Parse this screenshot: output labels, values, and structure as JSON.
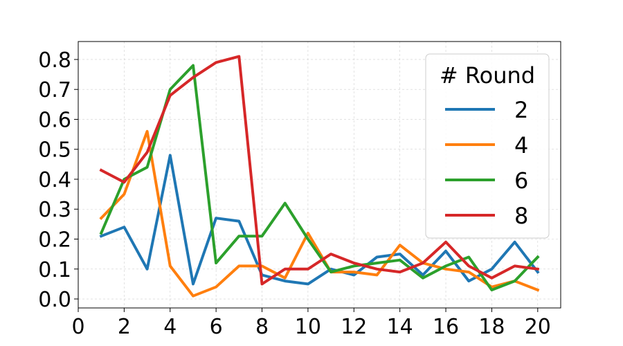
{
  "chart_data": {
    "type": "line",
    "title": "",
    "xlabel": "",
    "ylabel": "",
    "xlim": [
      0,
      21
    ],
    "ylim": [
      -0.03,
      0.86
    ],
    "xticks": [
      "0",
      "2",
      "4",
      "6",
      "8",
      "10",
      "12",
      "14",
      "16",
      "18",
      "20"
    ],
    "yticks": [
      "0.0",
      "0.1",
      "0.2",
      "0.3",
      "0.4",
      "0.5",
      "0.6",
      "0.7",
      "0.8"
    ],
    "grid": true,
    "legend": {
      "title": "# Round",
      "placement": "top-right"
    },
    "x": [
      1,
      2,
      3,
      4,
      5,
      6,
      7,
      8,
      9,
      10,
      11,
      12,
      13,
      14,
      15,
      16,
      17,
      18,
      19,
      20
    ],
    "series": [
      {
        "name": "2",
        "color": "#1f77b4",
        "values": [
          0.21,
          0.24,
          0.1,
          0.48,
          0.05,
          0.27,
          0.26,
          0.08,
          0.06,
          0.05,
          0.1,
          0.08,
          0.14,
          0.15,
          0.08,
          0.16,
          0.06,
          0.1,
          0.19,
          0.09
        ]
      },
      {
        "name": "4",
        "color": "#ff7f0e",
        "values": [
          0.27,
          0.35,
          0.56,
          0.11,
          0.01,
          0.04,
          0.11,
          0.11,
          0.07,
          0.22,
          0.09,
          0.09,
          0.08,
          0.18,
          0.12,
          0.1,
          0.09,
          0.04,
          0.06,
          0.03
        ]
      },
      {
        "name": "6",
        "color": "#2ca02c",
        "values": [
          0.22,
          0.4,
          0.44,
          0.7,
          0.78,
          0.12,
          0.21,
          0.21,
          0.32,
          0.2,
          0.09,
          0.11,
          0.12,
          0.13,
          0.07,
          0.11,
          0.14,
          0.03,
          0.06,
          0.14
        ]
      },
      {
        "name": "8",
        "color": "#d62728",
        "values": [
          0.43,
          0.39,
          0.49,
          0.68,
          0.74,
          0.79,
          0.81,
          0.05,
          0.1,
          0.1,
          0.15,
          0.12,
          0.1,
          0.09,
          0.12,
          0.19,
          0.11,
          0.07,
          0.11,
          0.1
        ]
      }
    ]
  }
}
